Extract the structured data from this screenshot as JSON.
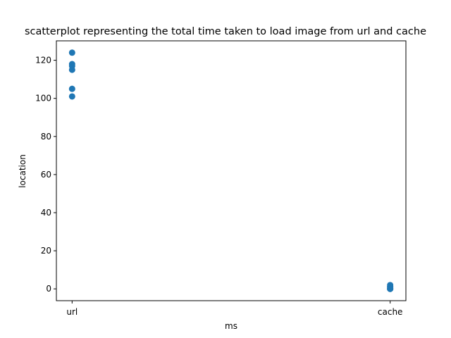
{
  "chart_data": {
    "type": "scatter",
    "title": "scatterplot representing the total time taken to load image from url and cache",
    "xlabel": "ms",
    "ylabel": "location",
    "categories": [
      "url",
      "cache"
    ],
    "ylim": [
      -6.2,
      130.2
    ],
    "yticks": [
      0,
      20,
      40,
      60,
      80,
      100,
      120
    ],
    "grid": false,
    "marker_color": "#1f77b4",
    "points": [
      {
        "x": "url",
        "y": 124
      },
      {
        "x": "url",
        "y": 118
      },
      {
        "x": "url",
        "y": 117
      },
      {
        "x": "url",
        "y": 115
      },
      {
        "x": "url",
        "y": 105
      },
      {
        "x": "url",
        "y": 101
      },
      {
        "x": "cache",
        "y": 2
      },
      {
        "x": "cache",
        "y": 1
      },
      {
        "x": "cache",
        "y": 1
      },
      {
        "x": "cache",
        "y": 0
      },
      {
        "x": "cache",
        "y": 0
      },
      {
        "x": "cache",
        "y": 0
      }
    ]
  }
}
